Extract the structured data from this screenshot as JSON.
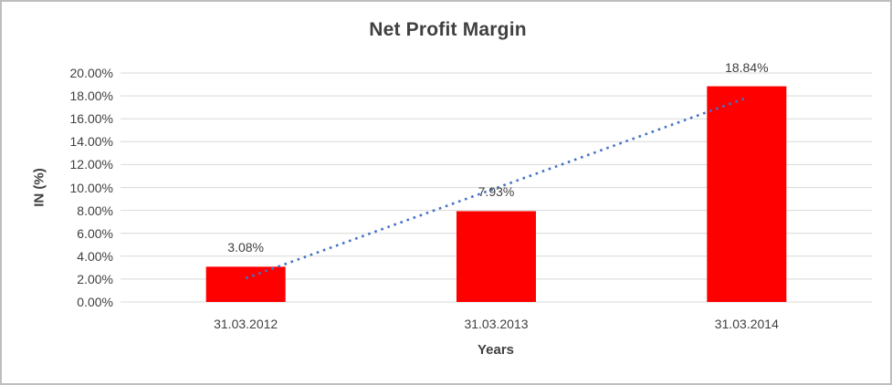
{
  "chart_data": {
    "type": "bar",
    "title": "Net Profit Margin",
    "xlabel": "Years",
    "ylabel": "IN (%)",
    "categories": [
      "31.03.2012",
      "31.03.2013",
      "31.03.2014"
    ],
    "values": [
      3.08,
      7.93,
      18.84
    ],
    "data_labels": [
      "3.08%",
      "7.93%",
      "18.84%"
    ],
    "ylim": [
      0,
      20
    ],
    "ytick_step": 2,
    "ytick_labels": [
      "0.00%",
      "2.00%",
      "4.00%",
      "6.00%",
      "8.00%",
      "10.00%",
      "12.00%",
      "14.00%",
      "16.00%",
      "18.00%",
      "20.00%"
    ],
    "grid": true,
    "legend": "none",
    "bar_color": "#FF0000",
    "trendline": {
      "type": "linear",
      "style": "dotted",
      "color": "#4472C4",
      "start_value": 2.07,
      "end_value": 17.83
    }
  },
  "colors": {
    "text": "#404040",
    "gridline": "#D9D9D9",
    "background": "#FFFFFF",
    "frame_border": "#BEBEBE"
  }
}
